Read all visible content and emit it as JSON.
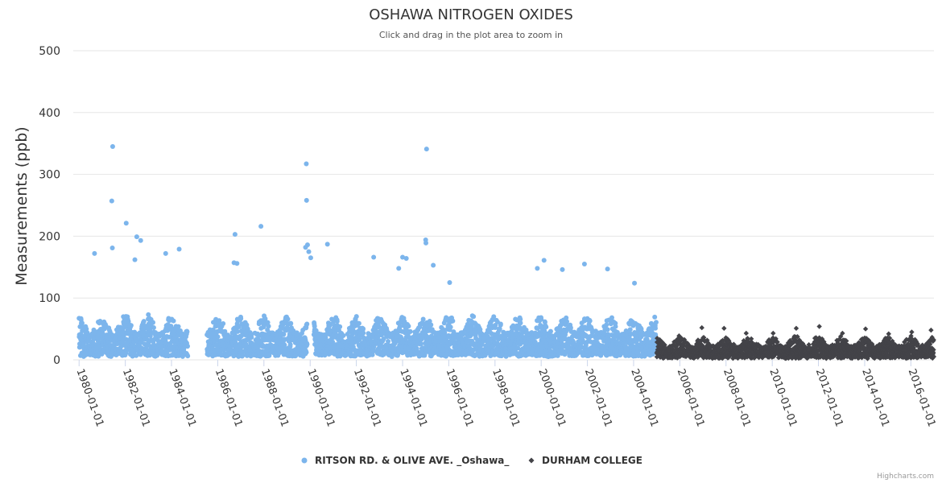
{
  "chart_data": {
    "type": "scatter",
    "title": "OSHAWA NITROGEN OXIDES",
    "subtitle": "Click and drag in the plot area to zoom in",
    "xlabel": "",
    "ylabel": "Measurements (ppb)",
    "ylim": [
      0,
      500
    ],
    "xlim": [
      "1979-10-01",
      "2016-12-31"
    ],
    "yticks": [
      0,
      100,
      200,
      300,
      400,
      500
    ],
    "xticks": [
      "1980-01-01",
      "1982-01-01",
      "1984-01-01",
      "1986-01-01",
      "1988-01-01",
      "1990-01-01",
      "1992-01-01",
      "1994-01-01",
      "1996-01-01",
      "1998-01-01",
      "2000-01-01",
      "2002-01-01",
      "2004-01-01",
      "2006-01-01",
      "2008-01-01",
      "2010-01-01",
      "2012-01-01",
      "2014-01-01",
      "2016-01-01"
    ],
    "grid": true,
    "legend_position": "bottom-center",
    "series": [
      {
        "name": "RITSON RD. & OLIVE AVE. _Oshawa_",
        "color": "#7cb5ec",
        "marker": "circle",
        "date_range": [
          "1980-01-01",
          "2004-12-31"
        ],
        "data_gaps": [
          [
            "1984-09-15",
            "1985-07-15"
          ],
          [
            "1989-11-15",
            "1990-03-01"
          ]
        ],
        "typical_range": [
          5,
          70
        ],
        "notable_points": [
          {
            "x": "1981-06-15",
            "y": 345
          },
          {
            "x": "1981-06-01",
            "y": 257
          },
          {
            "x": "1982-01-15",
            "y": 221
          },
          {
            "x": "1982-07-01",
            "y": 199
          },
          {
            "x": "1982-09-01",
            "y": 193
          },
          {
            "x": "1981-06-10",
            "y": 181
          },
          {
            "x": "1980-09-01",
            "y": 172
          },
          {
            "x": "1984-05-01",
            "y": 179
          },
          {
            "x": "1983-10-01",
            "y": 172
          },
          {
            "x": "1982-06-01",
            "y": 162
          },
          {
            "x": "1986-10-01",
            "y": 203
          },
          {
            "x": "1987-11-15",
            "y": 216
          },
          {
            "x": "1986-09-15",
            "y": 157
          },
          {
            "x": "1986-11-01",
            "y": 156
          },
          {
            "x": "1989-11-01",
            "y": 317
          },
          {
            "x": "1989-11-05",
            "y": 258
          },
          {
            "x": "1989-11-20",
            "y": 186
          },
          {
            "x": "1989-12-10",
            "y": 175
          },
          {
            "x": "1990-01-10",
            "y": 165
          },
          {
            "x": "1989-10-20",
            "y": 182
          },
          {
            "x": "1990-10-01",
            "y": 187
          },
          {
            "x": "1992-10-01",
            "y": 166
          },
          {
            "x": "1994-01-01",
            "y": 166
          },
          {
            "x": "1994-03-01",
            "y": 164
          },
          {
            "x": "1993-11-01",
            "y": 148
          },
          {
            "x": "1995-01-15",
            "y": 341
          },
          {
            "x": "1995-01-01",
            "y": 194
          },
          {
            "x": "1995-01-05",
            "y": 189
          },
          {
            "x": "1995-05-01",
            "y": 153
          },
          {
            "x": "1996-01-15",
            "y": 125
          },
          {
            "x": "2000-02-15",
            "y": 161
          },
          {
            "x": "1999-11-01",
            "y": 148
          },
          {
            "x": "2000-12-01",
            "y": 146
          },
          {
            "x": "2001-11-15",
            "y": 155
          },
          {
            "x": "2002-11-15",
            "y": 147
          },
          {
            "x": "2004-01-15",
            "y": 124
          }
        ]
      },
      {
        "name": "DURHAM COLLEGE",
        "color": "#434348",
        "marker": "diamond",
        "date_range": [
          "2005-01-01",
          "2016-12-31"
        ],
        "typical_range": [
          2,
          35
        ],
        "notable_points": [
          {
            "x": "2006-12-15",
            "y": 52
          },
          {
            "x": "2007-12-01",
            "y": 51
          },
          {
            "x": "2008-11-15",
            "y": 43
          },
          {
            "x": "2010-01-15",
            "y": 43
          },
          {
            "x": "2011-01-15",
            "y": 51
          },
          {
            "x": "2012-01-15",
            "y": 54
          },
          {
            "x": "2013-01-15",
            "y": 43
          },
          {
            "x": "2014-01-15",
            "y": 50
          },
          {
            "x": "2015-01-15",
            "y": 42
          },
          {
            "x": "2016-01-15",
            "y": 45
          },
          {
            "x": "2016-11-15",
            "y": 48
          }
        ]
      }
    ]
  },
  "credits": "Highcharts.com"
}
